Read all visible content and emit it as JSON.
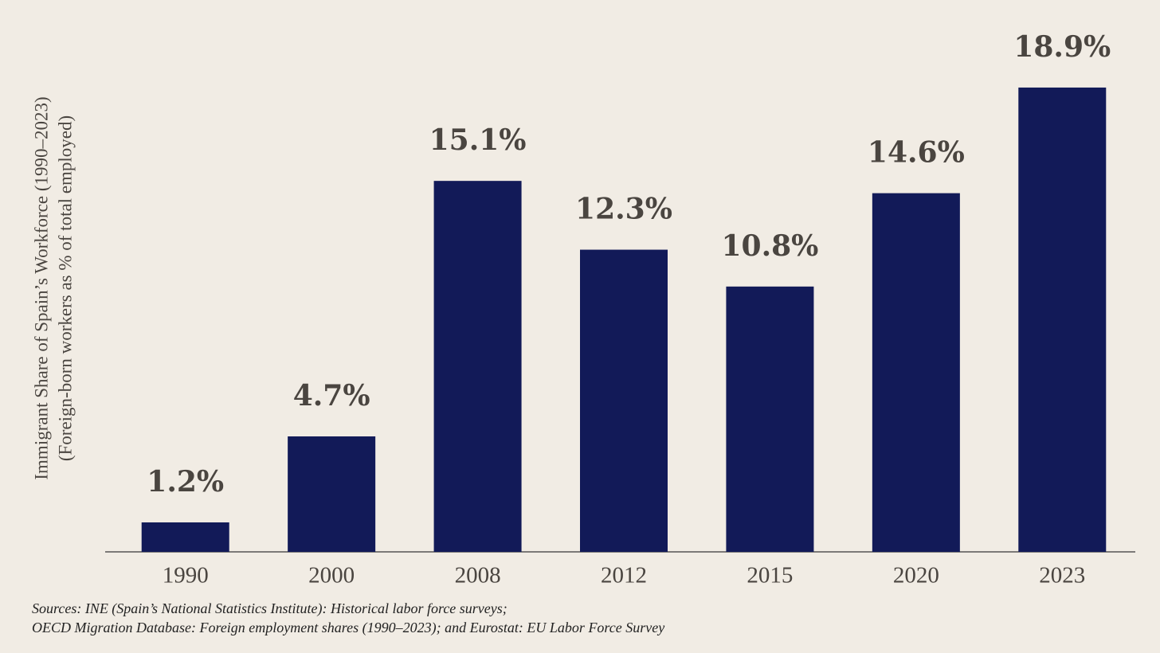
{
  "chart_data": {
    "type": "bar",
    "ylabel": [
      "Immigrant Share of Spain’s Workforce (1990–2023)",
      "(Foreign-born workers as % of total employed)"
    ],
    "categories": [
      "1990",
      "2000",
      "2008",
      "2012",
      "2015",
      "2020",
      "2023"
    ],
    "values": [
      1.2,
      4.7,
      15.1,
      12.3,
      10.8,
      14.6,
      18.9
    ],
    "value_labels": [
      "1.2%",
      "4.7%",
      "15.1%",
      "12.3%",
      "10.8%",
      "14.6%",
      "18.9%"
    ],
    "color": "#121a58",
    "ylim": [
      0,
      20
    ],
    "sources": [
      "Sources: INE (Spain’s National Statistics Institute): Historical labor force surveys;",
      "OECD Migration Database: Foreign employment shares (1990–2023); and Eurostat: EU Labor Force Survey"
    ]
  }
}
